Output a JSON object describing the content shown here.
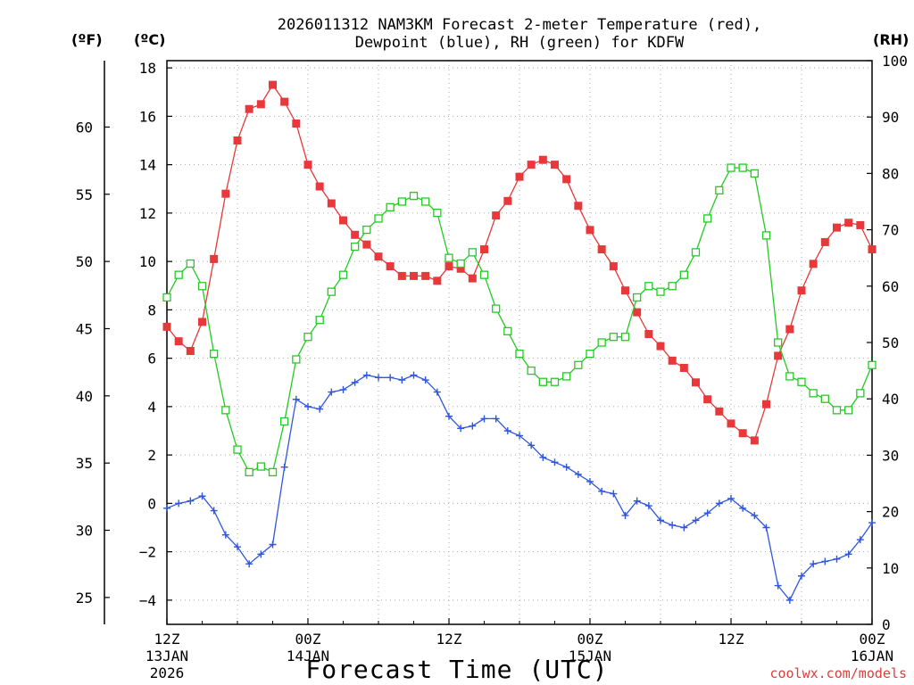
{
  "chart_data": {
    "type": "line",
    "title_line1": "2026011312 NAM3KM Forecast 2-meter Temperature (red),",
    "title_line2": "Dewpoint (blue), RH (green) for KDFW",
    "xlabel": "Forecast Time (UTC)",
    "credit": "coolwx.com/models",
    "units": {
      "fahrenheit": "(ºF)",
      "celsius": "(ºC)",
      "rh": "(RH)"
    },
    "x_range_hours": [
      0,
      60
    ],
    "x_ticks": [
      {
        "hour": 0,
        "line1": "12Z",
        "line2": "13JAN",
        "line3": "2026"
      },
      {
        "hour": 12,
        "line1": "00Z",
        "line2": "14JAN",
        "line3": ""
      },
      {
        "hour": 24,
        "line1": "12Z",
        "line2": "",
        "line3": ""
      },
      {
        "hour": 36,
        "line1": "00Z",
        "line2": "15JAN",
        "line3": ""
      },
      {
        "hour": 48,
        "line1": "12Z",
        "line2": "",
        "line3": ""
      },
      {
        "hour": 60,
        "line1": "00Z",
        "line2": "16JAN",
        "line3": ""
      }
    ],
    "celsius_axis": {
      "ylim": [
        -5,
        18.3
      ],
      "ticks": [
        -4,
        -2,
        0,
        2,
        4,
        6,
        8,
        10,
        12,
        14,
        16,
        18
      ],
      "labels": [
        "−4",
        "−2",
        "0",
        "2",
        "4",
        "6",
        "8",
        "10",
        "12",
        "14",
        "16",
        "18"
      ]
    },
    "fahrenheit_axis": {
      "ticks": [
        25,
        30,
        35,
        40,
        45,
        50,
        55,
        60
      ],
      "labels": [
        "25",
        "30",
        "35",
        "40",
        "45",
        "50",
        "55",
        "60"
      ]
    },
    "rh_axis": {
      "ylim": [
        0,
        100
      ],
      "ticks": [
        0,
        10,
        20,
        30,
        40,
        50,
        60,
        70,
        80,
        90,
        100
      ],
      "labels": [
        "0",
        "10",
        "20",
        "30",
        "40",
        "50",
        "60",
        "70",
        "80",
        "90",
        "100"
      ]
    },
    "series": [
      {
        "name": "Temperature",
        "unit": "C",
        "color": "#e8383b",
        "marker": "filled-square",
        "values": [
          7.3,
          6.7,
          6.3,
          7.5,
          10.1,
          12.8,
          15.0,
          16.3,
          16.5,
          17.3,
          16.6,
          15.7,
          14.0,
          13.1,
          12.4,
          11.7,
          11.1,
          10.7,
          10.2,
          9.8,
          9.4,
          9.4,
          9.4,
          9.2,
          9.8,
          9.7,
          9.3,
          10.5,
          11.9,
          12.5,
          13.5,
          14.0,
          14.2,
          14.0,
          13.4,
          12.3,
          11.3,
          10.5,
          9.8,
          8.8,
          7.9,
          7.0,
          6.5,
          5.9,
          5.6,
          5.0,
          4.3,
          3.8,
          3.3,
          2.9,
          2.6,
          4.1,
          6.1,
          7.2,
          8.8,
          9.9,
          10.8,
          11.4,
          11.6,
          11.5,
          10.5
        ]
      },
      {
        "name": "Dewpoint",
        "unit": "C",
        "color": "#2f56e0",
        "marker": "plus",
        "values": [
          -0.2,
          0.0,
          0.1,
          0.3,
          -0.3,
          -1.3,
          -1.8,
          -2.5,
          -2.1,
          -1.7,
          1.5,
          4.3,
          4.0,
          3.9,
          4.6,
          4.7,
          5.0,
          5.3,
          5.2,
          5.2,
          5.1,
          5.3,
          5.1,
          4.6,
          3.6,
          3.1,
          3.2,
          3.5,
          3.5,
          3.0,
          2.8,
          2.4,
          1.9,
          1.7,
          1.5,
          1.2,
          0.9,
          0.5,
          0.4,
          -0.5,
          0.1,
          -0.1,
          -0.7,
          -0.9,
          -1.0,
          -0.7,
          -0.4,
          0.0,
          0.2,
          -0.2,
          -0.5,
          -1.0,
          -3.4,
          -4.0,
          -3.0,
          -2.5,
          -2.4,
          -2.3,
          -2.1,
          -1.5,
          -0.8
        ]
      },
      {
        "name": "RH",
        "unit": "%",
        "color": "#22cc22",
        "marker": "open-square",
        "values": [
          58,
          62,
          64,
          60,
          48,
          38,
          31,
          27,
          28,
          27,
          36,
          47,
          51,
          54,
          59,
          62,
          67,
          70,
          72,
          74,
          75,
          76,
          75,
          73,
          65,
          64,
          66,
          62,
          56,
          52,
          48,
          45,
          43,
          43,
          44,
          46,
          48,
          50,
          51,
          51,
          58,
          60,
          59,
          60,
          62,
          66,
          72,
          77,
          81,
          81,
          80,
          69,
          50,
          44,
          43,
          41,
          40,
          38,
          38,
          41,
          46
        ]
      }
    ]
  }
}
